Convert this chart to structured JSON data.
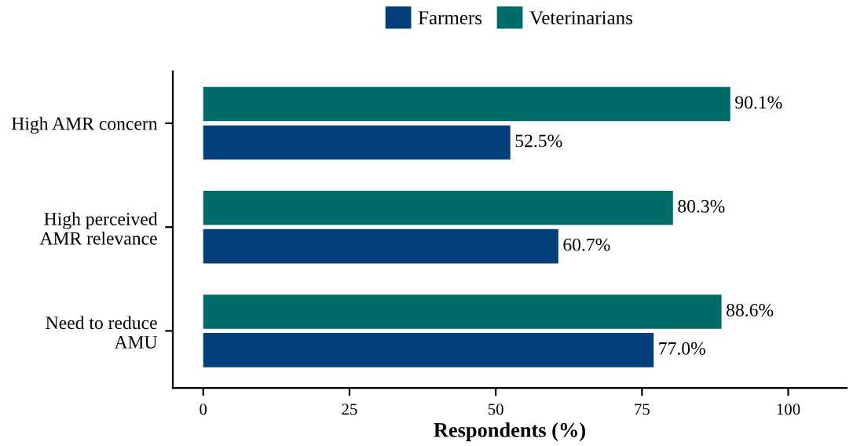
{
  "chart_data": {
    "type": "bar",
    "orientation": "horizontal",
    "xlabel": "Respondents (%)",
    "categories": [
      "High AMR concern",
      "High perceived\nAMR relevance",
      "Need to reduce\nAMU"
    ],
    "series": [
      {
        "name": "Farmers",
        "color": "#033f7a",
        "values": [
          52.5,
          60.7,
          77.0
        ],
        "value_labels": [
          "52.5%",
          "60.7%",
          "77.0%"
        ]
      },
      {
        "name": "Veterinarians",
        "color": "#006c6a",
        "values": [
          90.1,
          80.3,
          88.6
        ],
        "value_labels": [
          "90.1%",
          "80.3%",
          "88.6%"
        ]
      }
    ],
    "xlim": [
      -5.2,
      110
    ],
    "xticks": [
      0,
      25,
      50,
      75,
      100
    ],
    "grid": false,
    "legend": "top"
  }
}
